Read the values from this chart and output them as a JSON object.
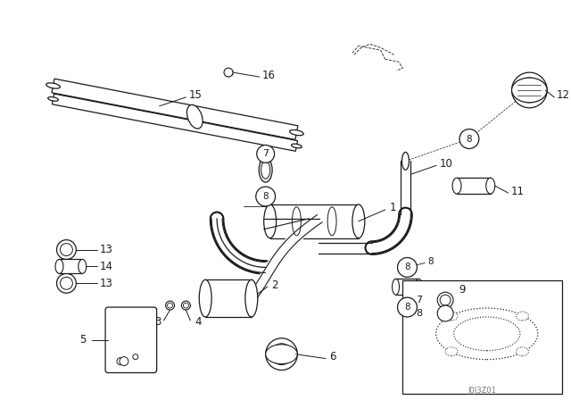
{
  "background_color": "#ffffff",
  "line_color": "#1a1a1a",
  "watermark": "J0J3Z01",
  "figsize": [
    6.4,
    4.48
  ],
  "dpi": 100
}
